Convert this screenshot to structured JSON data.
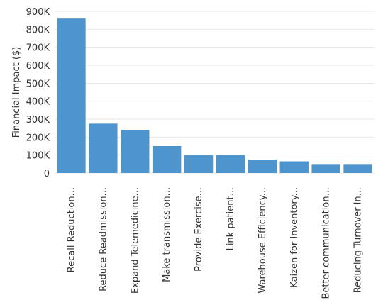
{
  "chart_data": {
    "type": "bar",
    "ylabel": "Financial Impact ($)",
    "xlabel": "",
    "ylim": [
      0,
      900000
    ],
    "yticks": [
      0,
      100000,
      200000,
      300000,
      400000,
      500000,
      600000,
      700000,
      800000,
      900000
    ],
    "ytick_labels": [
      "0",
      "100K",
      "200K",
      "300K",
      "400K",
      "500K",
      "600K",
      "700K",
      "800K",
      "900K"
    ],
    "grid": true,
    "bar_color": "#4e95ce",
    "categories": [
      "Recall Reduction...",
      "Reduce Readmission...",
      "Expand Telemedicine...",
      "Make transmission...",
      "Provide Exercise...",
      "Link patient...",
      "Warehouse Efficiency...",
      "Kaizen for Inventory...",
      "Better communication...",
      "Reducing Turnover in..."
    ],
    "values": [
      860000,
      275000,
      240000,
      150000,
      100000,
      100000,
      75000,
      65000,
      50000,
      50000
    ]
  }
}
